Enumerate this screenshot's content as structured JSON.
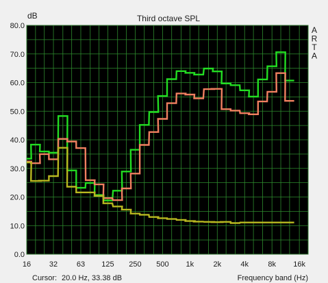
{
  "chart_data": {
    "type": "line",
    "title": "Third octave SPL",
    "ylabel": "dB",
    "xlabel": "Frequency band (Hz)",
    "ylim": [
      0,
      80
    ],
    "yticks": [
      "0.0",
      "10.0",
      "20.0",
      "30.0",
      "40.0",
      "50.0",
      "60.0",
      "70.0",
      "80.0"
    ],
    "xscale": "log",
    "xlim": [
      16,
      20000
    ],
    "xticks": [
      {
        "label": "16",
        "x": 16
      },
      {
        "label": "32",
        "x": 31.5
      },
      {
        "label": "63",
        "x": 63
      },
      {
        "label": "125",
        "x": 125
      },
      {
        "label": "250",
        "x": 250
      },
      {
        "label": "500",
        "x": 500
      },
      {
        "label": "1k",
        "x": 1000
      },
      {
        "label": "2k",
        "x": 2000
      },
      {
        "label": "4k",
        "x": 4000
      },
      {
        "label": "8k",
        "x": 8000
      },
      {
        "label": "16k",
        "x": 16000
      }
    ],
    "bands": [
      16,
      20,
      25,
      31.5,
      40,
      50,
      63,
      80,
      100,
      125,
      160,
      200,
      250,
      315,
      400,
      500,
      630,
      800,
      1000,
      1250,
      1600,
      2000,
      2500,
      3150,
      4000,
      5000,
      6300,
      8000,
      10000,
      12500,
      16000,
      20000
    ],
    "grid": true,
    "background": "#000000",
    "grid_color": "#2e8b2e",
    "series": [
      {
        "color": "#22dd22",
        "values": [
          33.4,
          38.3,
          35.9,
          35.5,
          48.3,
          29.3,
          23.2,
          24.9,
          20.7,
          18.8,
          22.2,
          28.9,
          36.5,
          45.2,
          49.7,
          55.3,
          61.2,
          64.0,
          63.4,
          62.8,
          64.9,
          63.9,
          59.7,
          59.1,
          57.3,
          55.1,
          61.1,
          65.7,
          70.6,
          60.7
        ]
      },
      {
        "color": "#f08060",
        "values": [
          32.4,
          31.8,
          35.0,
          33.2,
          40.3,
          39.4,
          37.1,
          25.9,
          24.4,
          19.6,
          18.9,
          23.0,
          28.2,
          38.2,
          42.7,
          47.3,
          52.8,
          56.2,
          55.8,
          54.5,
          57.7,
          57.8,
          50.7,
          50.2,
          49.3,
          48.9,
          53.4,
          56.8,
          63.3,
          53.6
        ]
      },
      {
        "color": "#b8b820",
        "values": [
          32.1,
          25.6,
          25.7,
          27.3,
          37.2,
          23.6,
          21.6,
          21.6,
          20.4,
          17.8,
          16.7,
          15.6,
          14.2,
          13.8,
          13.0,
          12.6,
          12.3,
          12.0,
          11.6,
          11.4,
          11.3,
          11.2,
          11.3,
          10.9,
          11.1,
          11.1,
          11.1,
          11.1,
          11.1,
          11.1
        ]
      }
    ],
    "side_label": [
      "A",
      "R",
      "T",
      "A"
    ],
    "cursor": {
      "label": "Cursor:",
      "value": "20.0 Hz, 33.38 dB"
    }
  }
}
